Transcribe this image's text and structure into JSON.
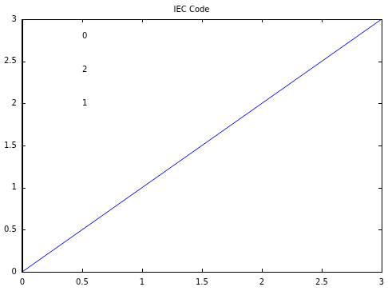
{
  "chart_data": {
    "type": "line",
    "title": "IEC Code",
    "x": [
      0,
      3
    ],
    "values": [
      0,
      3
    ],
    "color": "#0000ff",
    "xlim": [
      0,
      3
    ],
    "xticks": [
      0,
      0.5,
      1,
      1.5,
      2,
      2.5,
      3
    ],
    "ylim": [
      0,
      3
    ],
    "yticks": [
      0,
      0.5,
      1,
      1.5,
      2,
      2.5,
      3
    ],
    "grid": false,
    "annotations": [
      {
        "text": "0",
        "x": 0.5,
        "y": 2.8
      },
      {
        "text": "2",
        "x": 0.5,
        "y": 2.4
      },
      {
        "text": "1",
        "x": 0.5,
        "y": 2.0
      }
    ]
  }
}
